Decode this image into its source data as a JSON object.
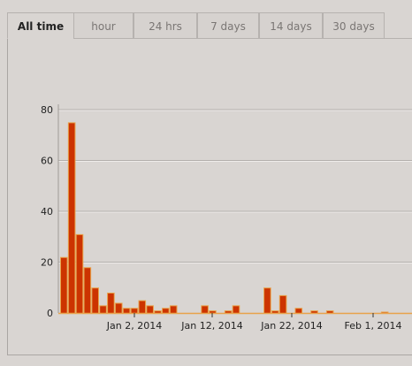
{
  "tabs": [
    {
      "label": "All time",
      "active": true
    },
    {
      "label": "hour",
      "active": false
    },
    {
      "label": "24 hrs",
      "active": false
    },
    {
      "label": "7 days",
      "active": false
    },
    {
      "label": "14 days",
      "active": false
    },
    {
      "label": "30 days",
      "active": false
    }
  ],
  "chart_data": {
    "type": "bar",
    "title": "",
    "xlabel": "",
    "ylabel": "",
    "ylim": [
      0,
      80
    ],
    "yticks": [
      0,
      20,
      40,
      60,
      80
    ],
    "xtick_labels": [
      "Jan 2, 2014",
      "Jan 12, 2014",
      "Jan 22, 2014",
      "Feb 1, 2014"
    ],
    "grid": true,
    "legend": "none",
    "colors": {
      "main": "#cc3300",
      "highlight": "#e8a24a",
      "pink": "#d98aa0",
      "cyan": "#7fc8d8"
    },
    "series": [
      {
        "values": [
          {
            "x": 0,
            "y": 22
          },
          {
            "x": 1,
            "y": 75
          },
          {
            "x": 2,
            "y": 31
          },
          {
            "x": 3,
            "y": 18
          },
          {
            "x": 4,
            "y": 10
          },
          {
            "x": 5,
            "y": 3
          },
          {
            "x": 6,
            "y": 8
          },
          {
            "x": 7,
            "y": 4
          },
          {
            "x": 8,
            "y": 2
          },
          {
            "x": 9,
            "y": 2
          },
          {
            "x": 10,
            "y": 5
          },
          {
            "x": 11,
            "y": 3
          },
          {
            "x": 12,
            "y": 1
          },
          {
            "x": 13,
            "y": 2
          },
          {
            "x": 14,
            "y": 3
          },
          {
            "x": 18,
            "y": 3
          },
          {
            "x": 19,
            "y": 1
          },
          {
            "x": 21,
            "y": 1
          },
          {
            "x": 22,
            "y": 3
          },
          {
            "x": 26,
            "y": 10
          },
          {
            "x": 27,
            "y": 1
          },
          {
            "x": 28,
            "y": 7
          },
          {
            "x": 30,
            "y": 2
          },
          {
            "x": 32,
            "y": 1
          },
          {
            "x": 34,
            "y": 1
          },
          {
            "x": 41,
            "y": 0.5
          }
        ]
      }
    ]
  }
}
